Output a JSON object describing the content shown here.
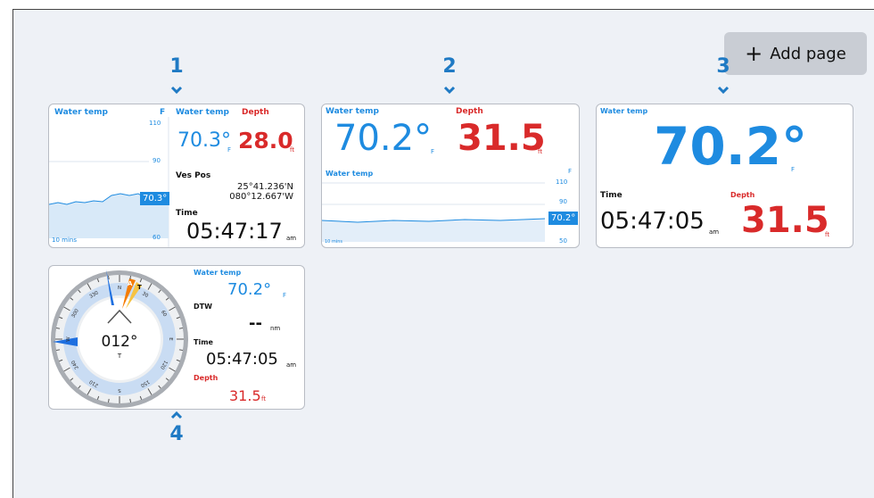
{
  "button": {
    "label": "Add page"
  },
  "pages": [
    {
      "number": "1",
      "chart": {
        "title": "Water temp",
        "unit": "F",
        "axis": [
          "110",
          "90",
          "60"
        ],
        "current": "70.3°",
        "span": "10 mins"
      },
      "water_temp": {
        "label": "Water temp",
        "value": "70.3°",
        "unit": "F"
      },
      "depth": {
        "label": "Depth",
        "value": "28.0",
        "unit": "ft"
      },
      "position": {
        "label": "Ves Pos",
        "lat": "25°41.236'N",
        "lon": "080°12.667'W"
      },
      "time": {
        "label": "Time",
        "value": "05:47:17",
        "suffix": "am"
      }
    },
    {
      "number": "2",
      "water_temp": {
        "label": "Water temp",
        "value": "70.2°",
        "unit": "F"
      },
      "depth": {
        "label": "Depth",
        "value": "31.5",
        "unit": "ft"
      },
      "chart": {
        "title": "Water temp",
        "unit": "F",
        "axis": [
          "110",
          "90",
          "50"
        ],
        "current": "70.2°",
        "span": "10 mins"
      }
    },
    {
      "number": "3",
      "water_temp": {
        "label": "Water temp",
        "value": "70.2°",
        "unit": "F"
      },
      "time": {
        "label": "Time",
        "value": "05:47:05",
        "suffix": "am"
      },
      "depth": {
        "label": "Depth",
        "value": "31.5",
        "unit": "ft"
      }
    },
    {
      "number": "4",
      "compass": {
        "heading": "012°",
        "ref": "T",
        "pointers": [
          "A",
          "T"
        ],
        "dial": [
          "N",
          "30",
          "60",
          "E",
          "120",
          "150",
          "S",
          "210",
          "240",
          "W",
          "300",
          "330"
        ]
      },
      "water_temp": {
        "label": "Water temp",
        "value": "70.2°",
        "unit": "F"
      },
      "dtw": {
        "label": "DTW",
        "value": "--",
        "unit": "nm"
      },
      "time": {
        "label": "Time",
        "value": "05:47:05",
        "suffix": "am"
      },
      "depth": {
        "label": "Depth",
        "value": "31.5",
        "unit": "ft"
      }
    }
  ]
}
